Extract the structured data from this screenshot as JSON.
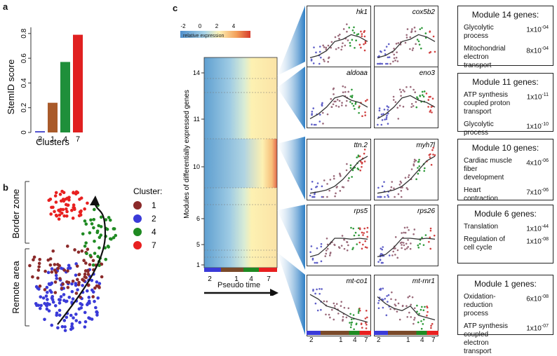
{
  "panels": {
    "a": "a",
    "b": "b",
    "c": "c"
  },
  "bar_chart": {
    "ylabel": "StemID score",
    "xlabel": "Clusters",
    "ylim": [
      0,
      0.85
    ],
    "yticks": [
      "0",
      "0.2",
      "0.4",
      "0.6",
      "0.8"
    ],
    "ytick_values": [
      0,
      0.2,
      0.4,
      0.6,
      0.8
    ],
    "categories": [
      "2",
      "1",
      "4",
      "7"
    ],
    "values": [
      0.01,
      0.24,
      0.57,
      0.79
    ],
    "colors": [
      "#3a3ac8",
      "#a95a2a",
      "#1f8f3a",
      "#e02020"
    ]
  },
  "scatter": {
    "zone_top": "Border zone",
    "zone_bottom": "Remote area",
    "legend_title": "Cluster:",
    "legend": [
      {
        "label": "1",
        "color": "#8b2a2a"
      },
      {
        "label": "2",
        "color": "#3a3ad8"
      },
      {
        "label": "4",
        "color": "#1f8a22"
      },
      {
        "label": "7",
        "color": "#e82020"
      }
    ]
  },
  "heatmap": {
    "colorbar_ticks": [
      "-2",
      "0",
      "2",
      "4"
    ],
    "colorbar_label": "relative expression",
    "ylabel": "Modules of differentially expressed genes",
    "module_ticks": [
      "14",
      "11",
      "10",
      "6",
      "5",
      "1"
    ],
    "xticks": [
      "2",
      "1",
      "4",
      "7"
    ],
    "xlabel": "Pseudo time"
  },
  "gene_plots": [
    {
      "left": "hk1",
      "right": "cox5b2"
    },
    {
      "left": "aldoaa",
      "right": "eno3"
    },
    {
      "left": "ttn.2",
      "right": "myh7l"
    },
    {
      "left": "rps5",
      "right": "rps26"
    },
    {
      "left": "mt-co1",
      "right": "mt-rnr1"
    }
  ],
  "gene_xticks": [
    "2",
    "1",
    "4",
    "7"
  ],
  "modules": [
    {
      "title": "Module 14 genes:",
      "terms": [
        {
          "name": "Glycolytic process",
          "p": "1x10",
          "exp": "-04"
        },
        {
          "name": "Mitochondrial electron transport",
          "p": "8x10",
          "exp": "-04"
        }
      ]
    },
    {
      "title": "Module 11 genes:",
      "terms": [
        {
          "name": "ATP synthesis coupled proton transport",
          "p": "1x10",
          "exp": "-11"
        },
        {
          "name": "Glycolytic process",
          "p": "1x10",
          "exp": "-10"
        }
      ]
    },
    {
      "title": "Module 10 genes:",
      "terms": [
        {
          "name": "Cardiac muscle fiber development",
          "p": "4x10",
          "exp": "-06"
        },
        {
          "name": "Heart contraction",
          "p": "7x10",
          "exp": "-06"
        }
      ]
    },
    {
      "title": "Module 6 genes:",
      "terms": [
        {
          "name": "Translation",
          "p": "1x10",
          "exp": "-44"
        },
        {
          "name": "Regulation of cell cycle",
          "p": "1x10",
          "exp": "-08"
        }
      ]
    },
    {
      "title": "Module 1 genes:",
      "terms": [
        {
          "name": "Oxidation-reduction process",
          "p": "6x10",
          "exp": "-08"
        },
        {
          "name": "ATP synthesis coupled electron transport",
          "p": "1x10",
          "exp": "-07"
        }
      ]
    }
  ],
  "chart_data": [
    {
      "type": "bar",
      "categories": [
        "2",
        "1",
        "4",
        "7"
      ],
      "values": [
        0.01,
        0.24,
        0.57,
        0.79
      ],
      "xlabel": "Clusters",
      "ylabel": "StemID score",
      "ylim": [
        0,
        0.85
      ]
    },
    {
      "type": "scatter",
      "series": [
        {
          "name": "1",
          "values": []
        },
        {
          "name": "2",
          "values": []
        },
        {
          "name": "4",
          "values": []
        },
        {
          "name": "7",
          "values": []
        }
      ],
      "legend_title": "Cluster:"
    },
    {
      "type": "heatmap",
      "xlabel": "Pseudo time",
      "ylabel": "Modules of differentially expressed genes",
      "colorbar": [
        -2,
        4
      ],
      "yticks": [
        "14",
        "11",
        "10",
        "6",
        "5",
        "1"
      ],
      "xticks": [
        "2",
        "1",
        "4",
        "7"
      ]
    },
    {
      "type": "scatter",
      "series_labels": [
        "hk1",
        "cox5b2",
        "aldoaa",
        "eno3",
        "ttn.2",
        "myh7l",
        "rps5",
        "rps26",
        "mt-co1",
        "mt-rnr1"
      ],
      "xticks": [
        "2",
        "1",
        "4",
        "7"
      ]
    }
  ]
}
